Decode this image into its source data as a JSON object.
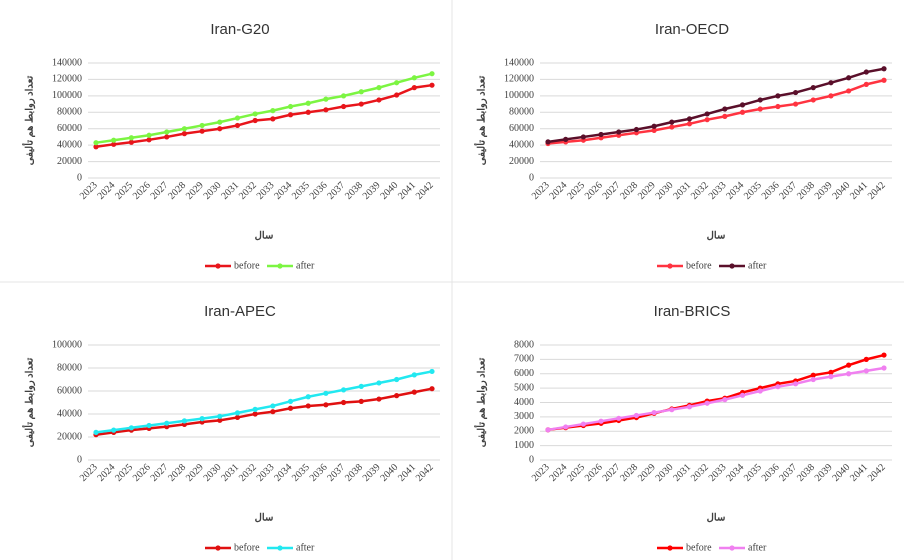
{
  "chart_data": [
    {
      "type": "line",
      "title": "Iran-G20",
      "y_label": "تعداد روابط هم تألیفی",
      "x_label": "سال",
      "categories": [
        "2023",
        "2024",
        "2025",
        "2026",
        "2027",
        "2028",
        "2029",
        "2030",
        "2031",
        "2032",
        "2033",
        "2034",
        "2035",
        "2036",
        "2037",
        "2038",
        "2039",
        "2040",
        "2041",
        "2042"
      ],
      "series": [
        {
          "name": "before",
          "color": "#e8151b",
          "values": [
            38000,
            41000,
            43500,
            46500,
            50000,
            54000,
            57000,
            60000,
            64000,
            70000,
            72000,
            77000,
            80000,
            83000,
            87000,
            90000,
            95000,
            101000,
            110000,
            113000
          ]
        },
        {
          "name": "after",
          "color": "#7cf542",
          "values": [
            43000,
            46000,
            49000,
            52000,
            56000,
            60000,
            64000,
            68000,
            73000,
            78000,
            82000,
            87000,
            91000,
            96000,
            100000,
            105000,
            110000,
            116000,
            122000,
            127000
          ]
        }
      ],
      "ylim": [
        0,
        140000
      ],
      "yticks": [
        0,
        20000,
        40000,
        60000,
        80000,
        100000,
        120000,
        140000
      ],
      "grid": true,
      "legend": "bottom"
    },
    {
      "type": "line",
      "title": "Iran-OECD",
      "y_label": "تعداد روابط هم تألیفی",
      "x_label": "سال",
      "categories": [
        "2023",
        "2024",
        "2025",
        "2026",
        "2027",
        "2028",
        "2029",
        "2030",
        "2031",
        "2032",
        "2033",
        "2034",
        "2035",
        "2036",
        "2037",
        "2038",
        "2039",
        "2040",
        "2041",
        "2042"
      ],
      "series": [
        {
          "name": "before",
          "color": "#ff3340",
          "values": [
            42000,
            44000,
            46000,
            49000,
            52000,
            55000,
            58000,
            62000,
            66000,
            71000,
            75000,
            80000,
            84000,
            87000,
            90000,
            95000,
            100000,
            106000,
            114000,
            119000
          ]
        },
        {
          "name": "after",
          "color": "#5a0f2a",
          "values": [
            44000,
            47000,
            50000,
            53000,
            56000,
            59000,
            63000,
            68000,
            72000,
            78000,
            84000,
            89000,
            95000,
            100000,
            104000,
            110000,
            116000,
            122000,
            129000,
            133000
          ]
        }
      ],
      "ylim": [
        0,
        140000
      ],
      "yticks": [
        0,
        20000,
        40000,
        60000,
        80000,
        100000,
        120000,
        140000
      ],
      "grid": true,
      "legend": "bottom"
    },
    {
      "type": "line",
      "title": "Iran-APEC",
      "y_label": "تعداد روابط هم تألیفی",
      "x_label": "سال",
      "categories": [
        "2023",
        "2024",
        "2025",
        "2026",
        "2027",
        "2028",
        "2029",
        "2030",
        "2031",
        "2032",
        "2033",
        "2034",
        "2035",
        "2036",
        "2037",
        "2038",
        "2039",
        "2040",
        "2041",
        "2042"
      ],
      "series": [
        {
          "name": "before",
          "color": "#e01010",
          "values": [
            22000,
            24000,
            26000,
            27500,
            29000,
            31000,
            33000,
            34500,
            37000,
            40000,
            42000,
            45000,
            47000,
            48000,
            50000,
            51000,
            53000,
            56000,
            59000,
            62000
          ]
        },
        {
          "name": "after",
          "color": "#22e8f0",
          "values": [
            24000,
            26000,
            28000,
            30000,
            32000,
            34000,
            36000,
            38000,
            41000,
            44000,
            47000,
            51000,
            55000,
            58000,
            61000,
            64000,
            67000,
            70000,
            74000,
            77000
          ]
        }
      ],
      "ylim": [
        0,
        100000
      ],
      "yticks": [
        0,
        20000,
        40000,
        60000,
        80000,
        100000
      ],
      "grid": true,
      "legend": "bottom"
    },
    {
      "type": "line",
      "title": "Iran-BRICS",
      "y_label": "تعداد روابط هم تألیفی",
      "x_label": "سال",
      "categories": [
        "2023",
        "2024",
        "2025",
        "2026",
        "2027",
        "2028",
        "2029",
        "2030",
        "2031",
        "2032",
        "2033",
        "2034",
        "2035",
        "2036",
        "2037",
        "2038",
        "2039",
        "2040",
        "2041",
        "2042"
      ],
      "series": [
        {
          "name": "before",
          "color": "#ff0000",
          "values": [
            2100,
            2250,
            2400,
            2550,
            2750,
            2950,
            3250,
            3550,
            3800,
            4100,
            4300,
            4700,
            5000,
            5300,
            5500,
            5900,
            6100,
            6600,
            7000,
            7300
          ]
        },
        {
          "name": "after",
          "color": "#f080f0",
          "values": [
            2100,
            2300,
            2500,
            2700,
            2900,
            3100,
            3300,
            3500,
            3700,
            3950,
            4200,
            4500,
            4800,
            5100,
            5300,
            5600,
            5800,
            6000,
            6200,
            6400
          ]
        }
      ],
      "ylim": [
        0,
        8000
      ],
      "yticks": [
        0,
        1000,
        2000,
        3000,
        4000,
        5000,
        6000,
        7000,
        8000
      ],
      "grid": true,
      "legend": "bottom"
    }
  ]
}
